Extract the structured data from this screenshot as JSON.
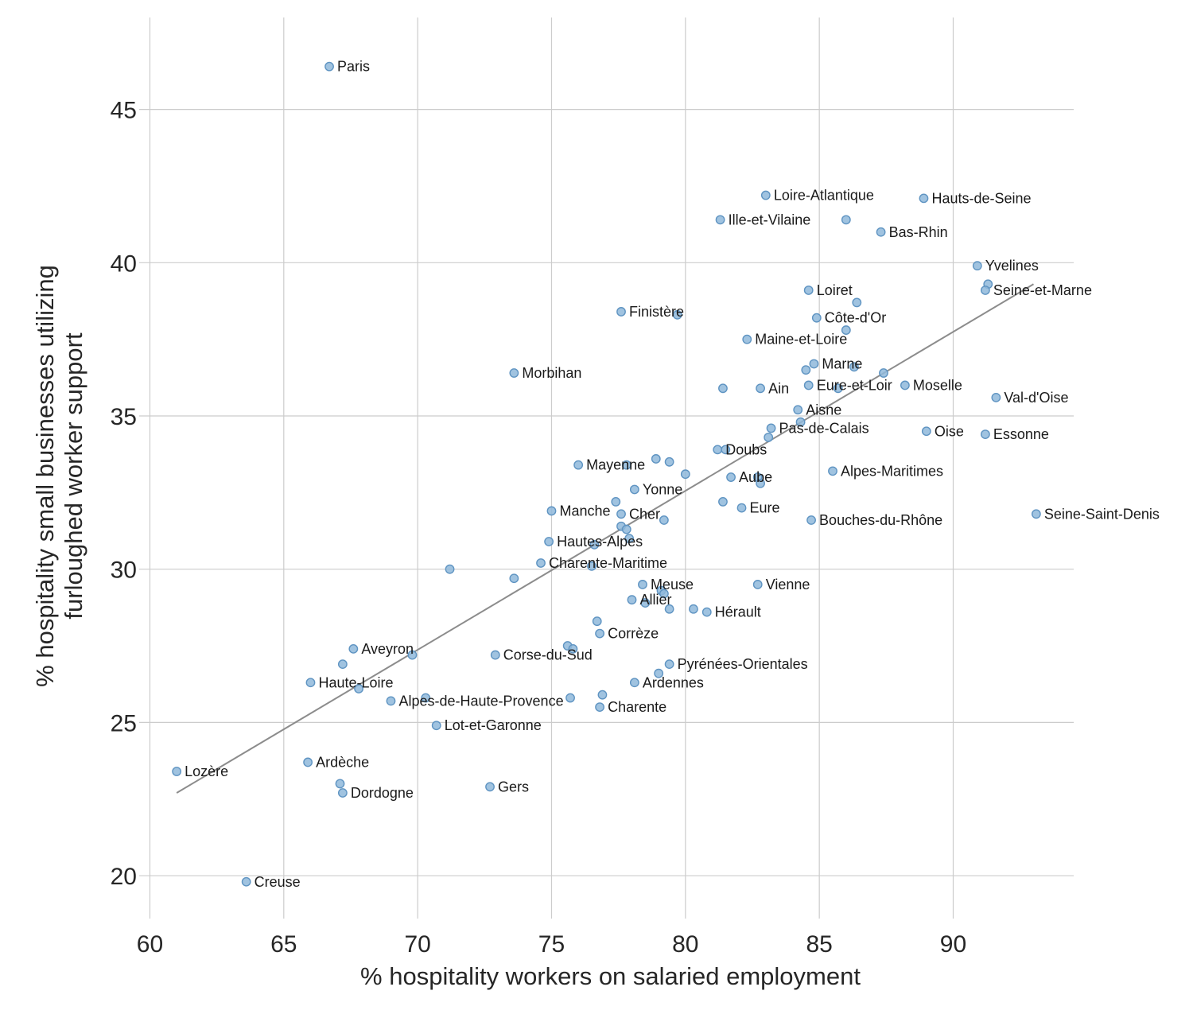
{
  "chart_data": {
    "type": "scatter",
    "title": "",
    "xlabel": "% hospitality workers on salaried employment",
    "ylabel": "% hospitality small businesses utilizing\nfurloughed worker support",
    "xlim": [
      59.6,
      94.5
    ],
    "ylim": [
      18.6,
      48
    ],
    "xticks": [
      60,
      65,
      70,
      75,
      80,
      85,
      90
    ],
    "yticks": [
      20,
      25,
      30,
      35,
      40,
      45
    ],
    "grid": true,
    "colors": {
      "point": "#8fb8db",
      "point_edge": "#5f94c2",
      "trendline": "#8c8c8c",
      "grid": "#cccccc"
    },
    "trendline": {
      "x": [
        61.0,
        93.0
      ],
      "y": [
        22.7,
        39.3
      ]
    },
    "points": [
      {
        "x": 66.7,
        "y": 46.4,
        "label": "Paris"
      },
      {
        "x": 83.0,
        "y": 42.2,
        "label": "Loire-Atlantique"
      },
      {
        "x": 88.9,
        "y": 42.1,
        "label": "Hauts-de-Seine"
      },
      {
        "x": 81.3,
        "y": 41.4,
        "label": "Ille-et-Vilaine"
      },
      {
        "x": 86.0,
        "y": 41.4,
        "label": ""
      },
      {
        "x": 87.3,
        "y": 41.0,
        "label": "Bas-Rhin"
      },
      {
        "x": 90.9,
        "y": 39.9,
        "label": "Yvelines"
      },
      {
        "x": 91.3,
        "y": 39.3,
        "label": ""
      },
      {
        "x": 91.2,
        "y": 39.1,
        "label": "Seine-et-Marne"
      },
      {
        "x": 84.6,
        "y": 39.1,
        "label": "Loiret"
      },
      {
        "x": 86.4,
        "y": 38.7,
        "label": ""
      },
      {
        "x": 77.6,
        "y": 38.4,
        "label": "Finistère"
      },
      {
        "x": 79.7,
        "y": 38.3,
        "label": ""
      },
      {
        "x": 84.9,
        "y": 38.2,
        "label": "Côte-d'Or"
      },
      {
        "x": 86.0,
        "y": 37.8,
        "label": ""
      },
      {
        "x": 82.3,
        "y": 37.5,
        "label": "Maine-et-Loire"
      },
      {
        "x": 84.8,
        "y": 36.7,
        "label": "Marne"
      },
      {
        "x": 84.5,
        "y": 36.5,
        "label": ""
      },
      {
        "x": 86.3,
        "y": 36.6,
        "label": ""
      },
      {
        "x": 87.4,
        "y": 36.4,
        "label": ""
      },
      {
        "x": 73.6,
        "y": 36.4,
        "label": "Morbihan"
      },
      {
        "x": 84.6,
        "y": 36.0,
        "label": "Eure-et-Loir"
      },
      {
        "x": 82.8,
        "y": 35.9,
        "label": "Ain"
      },
      {
        "x": 81.4,
        "y": 35.9,
        "label": ""
      },
      {
        "x": 85.7,
        "y": 35.9,
        "label": ""
      },
      {
        "x": 88.2,
        "y": 36.0,
        "label": "Moselle"
      },
      {
        "x": 91.6,
        "y": 35.6,
        "label": "Val-d'Oise"
      },
      {
        "x": 84.2,
        "y": 35.2,
        "label": "Aisne"
      },
      {
        "x": 84.3,
        "y": 34.8,
        "label": ""
      },
      {
        "x": 83.2,
        "y": 34.6,
        "label": "Pas-de-Calais"
      },
      {
        "x": 89.0,
        "y": 34.5,
        "label": "Oise"
      },
      {
        "x": 91.2,
        "y": 34.4,
        "label": "Essonne"
      },
      {
        "x": 83.1,
        "y": 34.3,
        "label": ""
      },
      {
        "x": 81.2,
        "y": 33.9,
        "label": "Doubs"
      },
      {
        "x": 81.5,
        "y": 33.9,
        "label": ""
      },
      {
        "x": 78.9,
        "y": 33.6,
        "label": ""
      },
      {
        "x": 79.4,
        "y": 33.5,
        "label": ""
      },
      {
        "x": 76.0,
        "y": 33.4,
        "label": "Mayenne"
      },
      {
        "x": 77.8,
        "y": 33.4,
        "label": ""
      },
      {
        "x": 85.5,
        "y": 33.2,
        "label": "Alpes-Maritimes"
      },
      {
        "x": 80.0,
        "y": 33.1,
        "label": ""
      },
      {
        "x": 81.7,
        "y": 33.0,
        "label": "Aube"
      },
      {
        "x": 82.7,
        "y": 33.0,
        "label": ""
      },
      {
        "x": 82.8,
        "y": 32.8,
        "label": ""
      },
      {
        "x": 78.1,
        "y": 32.6,
        "label": "Yonne"
      },
      {
        "x": 77.4,
        "y": 32.2,
        "label": ""
      },
      {
        "x": 81.4,
        "y": 32.2,
        "label": ""
      },
      {
        "x": 82.1,
        "y": 32.0,
        "label": "Eure"
      },
      {
        "x": 75.0,
        "y": 31.9,
        "label": "Manche"
      },
      {
        "x": 77.6,
        "y": 31.8,
        "label": "Cher"
      },
      {
        "x": 93.1,
        "y": 31.8,
        "label": "Seine-Saint-Denis"
      },
      {
        "x": 79.2,
        "y": 31.6,
        "label": ""
      },
      {
        "x": 84.7,
        "y": 31.6,
        "label": "Bouches-du-Rhône"
      },
      {
        "x": 77.6,
        "y": 31.4,
        "label": ""
      },
      {
        "x": 77.8,
        "y": 31.3,
        "label": ""
      },
      {
        "x": 77.9,
        "y": 31.0,
        "label": ""
      },
      {
        "x": 74.9,
        "y": 30.9,
        "label": "Hautes-Alpes"
      },
      {
        "x": 76.6,
        "y": 30.8,
        "label": ""
      },
      {
        "x": 74.6,
        "y": 30.2,
        "label": "Charente-Maritime"
      },
      {
        "x": 76.5,
        "y": 30.1,
        "label": ""
      },
      {
        "x": 71.2,
        "y": 30.0,
        "label": ""
      },
      {
        "x": 73.6,
        "y": 29.7,
        "label": ""
      },
      {
        "x": 78.4,
        "y": 29.5,
        "label": "Meuse"
      },
      {
        "x": 82.7,
        "y": 29.5,
        "label": "Vienne"
      },
      {
        "x": 79.1,
        "y": 29.3,
        "label": ""
      },
      {
        "x": 79.2,
        "y": 29.2,
        "label": ""
      },
      {
        "x": 78.0,
        "y": 29.0,
        "label": "Allier"
      },
      {
        "x": 78.5,
        "y": 28.9,
        "label": ""
      },
      {
        "x": 79.4,
        "y": 28.7,
        "label": ""
      },
      {
        "x": 80.3,
        "y": 28.7,
        "label": ""
      },
      {
        "x": 80.8,
        "y": 28.6,
        "label": "Hérault"
      },
      {
        "x": 76.7,
        "y": 28.3,
        "label": ""
      },
      {
        "x": 76.8,
        "y": 27.9,
        "label": "Corrèze"
      },
      {
        "x": 75.6,
        "y": 27.5,
        "label": ""
      },
      {
        "x": 75.8,
        "y": 27.4,
        "label": ""
      },
      {
        "x": 67.6,
        "y": 27.4,
        "label": "Aveyron"
      },
      {
        "x": 72.9,
        "y": 27.2,
        "label": "Corse-du-Sud"
      },
      {
        "x": 69.8,
        "y": 27.2,
        "label": ""
      },
      {
        "x": 79.4,
        "y": 26.9,
        "label": "Pyrénées-Orientales"
      },
      {
        "x": 67.2,
        "y": 26.9,
        "label": ""
      },
      {
        "x": 79.0,
        "y": 26.6,
        "label": ""
      },
      {
        "x": 66.0,
        "y": 26.3,
        "label": "Haute-Loire"
      },
      {
        "x": 78.1,
        "y": 26.3,
        "label": "Ardennes"
      },
      {
        "x": 67.8,
        "y": 26.1,
        "label": ""
      },
      {
        "x": 70.3,
        "y": 25.8,
        "label": ""
      },
      {
        "x": 75.7,
        "y": 25.8,
        "label": ""
      },
      {
        "x": 76.9,
        "y": 25.9,
        "label": ""
      },
      {
        "x": 69.0,
        "y": 25.7,
        "label": "Alpes-de-Haute-Provence"
      },
      {
        "x": 76.8,
        "y": 25.5,
        "label": "Charente"
      },
      {
        "x": 70.7,
        "y": 24.9,
        "label": "Lot-et-Garonne"
      },
      {
        "x": 65.9,
        "y": 23.7,
        "label": "Ardèche"
      },
      {
        "x": 61.0,
        "y": 23.4,
        "label": "Lozère"
      },
      {
        "x": 67.1,
        "y": 23.0,
        "label": ""
      },
      {
        "x": 72.7,
        "y": 22.9,
        "label": "Gers"
      },
      {
        "x": 67.2,
        "y": 22.7,
        "label": "Dordogne"
      },
      {
        "x": 63.6,
        "y": 19.8,
        "label": "Creuse"
      }
    ]
  }
}
